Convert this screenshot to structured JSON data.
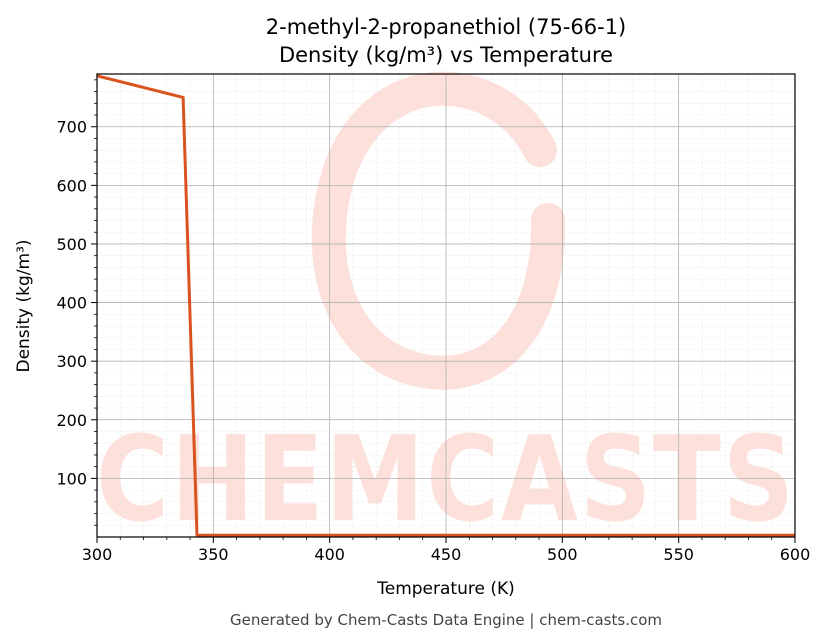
{
  "chart_data": {
    "type": "line",
    "title_line1": "2-methyl-2-propanethiol (75-66-1)",
    "title_line2": "Density (kg/m³) vs Temperature",
    "xlabel": "Temperature (K)",
    "ylabel": "Density (kg/m³)",
    "xlim": [
      300,
      600
    ],
    "ylim": [
      0,
      790
    ],
    "x_ticks": [
      300,
      350,
      400,
      450,
      500,
      550,
      600
    ],
    "y_ticks": [
      100,
      200,
      300,
      400,
      500,
      600,
      700
    ],
    "grid": true,
    "series": [
      {
        "color": "#d9531e",
        "x": [
          300,
          337,
          343,
          600
        ],
        "y": [
          787,
          750,
          3,
          3
        ]
      }
    ]
  },
  "watermark": {
    "text": "CHEMCASTS",
    "color": "#fde0da"
  },
  "footer": "Generated by Chem-Casts Data Engine | chem-casts.com"
}
